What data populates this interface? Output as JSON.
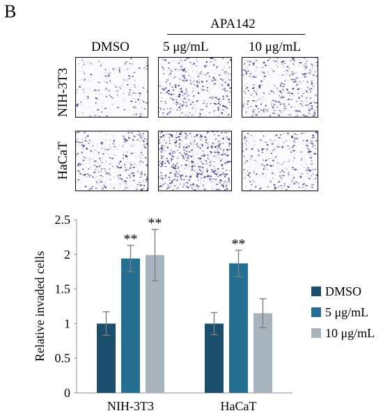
{
  "figure": {
    "panel_label": "B",
    "treatment_group_label": "APA142",
    "column_labels": [
      "DMSO",
      "5 μg/mL",
      "10 μg/mL"
    ],
    "row_labels": [
      "NIH-3T3",
      "HaCaT"
    ]
  },
  "chart_data": {
    "type": "bar",
    "categories": [
      "NIH-3T3",
      "HaCaT"
    ],
    "ylabel": "Relative invaded cells",
    "ylim": [
      0,
      2.5
    ],
    "yticks": [
      0,
      0.5,
      1,
      1.5,
      2,
      2.5
    ],
    "ytick_labels": [
      "0",
      "0.5",
      "1",
      "1.5",
      "2",
      "2.5"
    ],
    "grid": false,
    "legend_position": "right",
    "series": [
      {
        "name": "DMSO",
        "color": "#1b4f6c",
        "values": [
          1.0,
          1.0
        ],
        "errors": [
          0.17,
          0.16
        ],
        "annotations": [
          "",
          ""
        ]
      },
      {
        "name": "5 μg/mL",
        "color": "#256f93",
        "values": [
          1.94,
          1.87
        ],
        "errors": [
          0.19,
          0.19
        ],
        "annotations": [
          "**",
          "**"
        ]
      },
      {
        "name": "10 μg/mL",
        "color": "#a7b4be",
        "values": [
          1.99,
          1.15
        ],
        "errors": [
          0.37,
          0.21
        ],
        "annotations": [
          "**",
          ""
        ]
      }
    ]
  }
}
